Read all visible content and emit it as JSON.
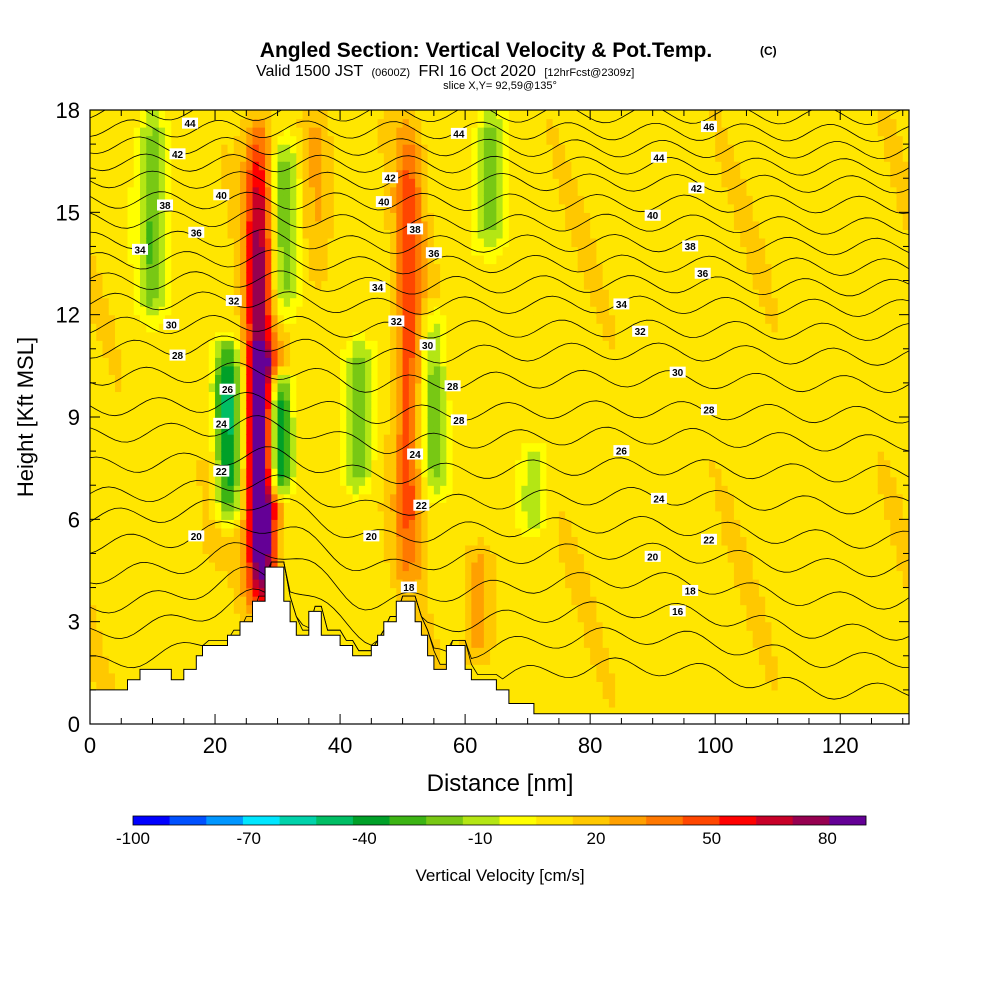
{
  "chart_data": {
    "type": "heatmap",
    "title": "Angled Section: Vertical Velocity & Pot.Temp.",
    "title_tag": "(C)",
    "subtitle_main": "Valid 1500 JST",
    "subtitle_z": "(0600Z)",
    "subtitle_date": "FRI 16 Oct 2020",
    "subtitle_fcst": "[12hrFcst@2309z]",
    "slice_label": "slice X,Y= 92,59@135°",
    "xlabel": "Distance [nm]",
    "ylabel": "Height [Kft MSL]",
    "xlim": [
      0,
      131
    ],
    "ylim": [
      0,
      18
    ],
    "x_ticks": [
      "0",
      "20",
      "40",
      "60",
      "80",
      "100",
      "120"
    ],
    "x_tick_values": [
      0,
      20,
      40,
      60,
      80,
      100,
      120
    ],
    "y_ticks": [
      "0",
      "3",
      "6",
      "9",
      "12",
      "15",
      "18"
    ],
    "y_tick_values": [
      0,
      3,
      6,
      9,
      12,
      15,
      18
    ],
    "colorbar": {
      "label": "Vertical Velocity [cm/s]",
      "tick_labels": [
        "-100",
        "-70",
        "-40",
        "-10",
        "20",
        "50",
        "80"
      ],
      "tick_values": [
        -100,
        -70,
        -40,
        -10,
        20,
        50,
        80
      ],
      "range": [
        -100,
        90
      ],
      "colors": [
        "#0000ff",
        "#0050ff",
        "#0096ff",
        "#00e6ff",
        "#00d2aa",
        "#00be64",
        "#00a028",
        "#3cb414",
        "#78c814",
        "#b4e614",
        "#ffff00",
        "#ffe600",
        "#ffc800",
        "#ffa000",
        "#ff7800",
        "#ff4600",
        "#ff0000",
        "#c80028",
        "#960050",
        "#640096"
      ]
    },
    "background_value": 10,
    "updraft_cores": [
      {
        "x": 27,
        "z0": 3.5,
        "z1": 18,
        "w": 75
      },
      {
        "x": 28,
        "z0": 3.5,
        "z1": 11,
        "w": 60
      },
      {
        "x": 51,
        "z0": 4,
        "z1": 18,
        "w": 50
      },
      {
        "x": 36,
        "z0": 13,
        "z1": 18,
        "w": 25
      },
      {
        "x": 62,
        "z0": 2,
        "z1": 5,
        "w": 30
      },
      {
        "x": 20,
        "z0": 5,
        "z1": 8,
        "w": 20
      }
    ],
    "downdraft_cores": [
      {
        "x": 22,
        "z0": 6,
        "z1": 11,
        "w": -45
      },
      {
        "x": 30,
        "z0": 7,
        "z1": 10,
        "w": -60
      },
      {
        "x": 10,
        "z0": 12,
        "z1": 18,
        "w": -25
      },
      {
        "x": 43,
        "z0": 7,
        "z1": 11,
        "w": -25
      },
      {
        "x": 55,
        "z0": 7,
        "z1": 12,
        "w": -20
      },
      {
        "x": 64,
        "z0": 14,
        "z1": 18,
        "w": -20
      },
      {
        "x": 71,
        "z0": 6,
        "z1": 8,
        "w": -15
      },
      {
        "x": 31,
        "z0": 12,
        "z1": 17,
        "w": -20
      }
    ],
    "terrain": [
      [
        0,
        1.0
      ],
      [
        6,
        1.0
      ],
      [
        6,
        1.3
      ],
      [
        8,
        1.3
      ],
      [
        8,
        1.6
      ],
      [
        13,
        1.6
      ],
      [
        13,
        1.3
      ],
      [
        15,
        1.3
      ],
      [
        15,
        1.6
      ],
      [
        17,
        1.6
      ],
      [
        17,
        2.0
      ],
      [
        18,
        2.0
      ],
      [
        18,
        2.3
      ],
      [
        22,
        2.3
      ],
      [
        22,
        2.6
      ],
      [
        24,
        2.6
      ],
      [
        24,
        3.0
      ],
      [
        26,
        3.0
      ],
      [
        26,
        3.6
      ],
      [
        28,
        3.6
      ],
      [
        28,
        4.6
      ],
      [
        31,
        4.6
      ],
      [
        31,
        3.6
      ],
      [
        32,
        3.6
      ],
      [
        32,
        3.0
      ],
      [
        33,
        3.0
      ],
      [
        33,
        2.6
      ],
      [
        35,
        2.6
      ],
      [
        35,
        3.3
      ],
      [
        37,
        3.3
      ],
      [
        37,
        2.6
      ],
      [
        40,
        2.6
      ],
      [
        40,
        2.3
      ],
      [
        42,
        2.3
      ],
      [
        42,
        2.0
      ],
      [
        45,
        2.0
      ],
      [
        45,
        2.3
      ],
      [
        46,
        2.3
      ],
      [
        46,
        2.6
      ],
      [
        47,
        2.6
      ],
      [
        47,
        3.0
      ],
      [
        49,
        3.0
      ],
      [
        49,
        3.6
      ],
      [
        52,
        3.6
      ],
      [
        52,
        3.0
      ],
      [
        53,
        3.0
      ],
      [
        53,
        2.6
      ],
      [
        54,
        2.6
      ],
      [
        54,
        2.0
      ],
      [
        55,
        2.0
      ],
      [
        55,
        1.6
      ],
      [
        57,
        1.6
      ],
      [
        57,
        2.3
      ],
      [
        60,
        2.3
      ],
      [
        60,
        1.6
      ],
      [
        61,
        1.6
      ],
      [
        61,
        1.3
      ],
      [
        65,
        1.3
      ],
      [
        65,
        1.0
      ],
      [
        67,
        1.0
      ],
      [
        67,
        0.6
      ],
      [
        71,
        0.6
      ],
      [
        71,
        0.3
      ],
      [
        131,
        0.3
      ]
    ],
    "isentropes": [
      {
        "label": "16",
        "base": 1.5,
        "sag": 1.0
      },
      {
        "label": "",
        "base": 2.4,
        "sag": 1.0
      },
      {
        "label": "18",
        "base": 3.2,
        "sag": 0.9
      },
      {
        "label": "",
        "base": 4.1,
        "sag": 0.8
      },
      {
        "label": "20",
        "base": 5.0,
        "sag": 0.6
      },
      {
        "label": "22",
        "base": 5.8,
        "sag": 0.5
      },
      {
        "label": "24",
        "base": 6.6,
        "sag": 0.4
      },
      {
        "label": "26",
        "base": 7.5,
        "sag": 0.3
      },
      {
        "label": "",
        "base": 8.4,
        "sag": 0.3
      },
      {
        "label": "28",
        "base": 9.2,
        "sag": 0.2
      },
      {
        "label": "",
        "base": 10.1,
        "sag": 0.2
      },
      {
        "label": "30",
        "base": 10.9,
        "sag": 0.2
      },
      {
        "label": "",
        "base": 11.6,
        "sag": 0.1
      },
      {
        "label": "32",
        "base": 12.3,
        "sag": 0.1
      },
      {
        "label": "",
        "base": 12.9,
        "sag": 0.1
      },
      {
        "label": "34",
        "base": 13.5,
        "sag": 0.1
      },
      {
        "label": "36",
        "base": 14.1,
        "sag": 0.1
      },
      {
        "label": "",
        "base": 14.7,
        "sag": 0.1
      },
      {
        "label": "38",
        "base": 15.3,
        "sag": 0.0
      },
      {
        "label": "40",
        "base": 15.9,
        "sag": 0.0
      },
      {
        "label": "",
        "base": 16.4,
        "sag": 0.0
      },
      {
        "label": "42",
        "base": 16.9,
        "sag": 0.0
      },
      {
        "label": "44",
        "base": 17.4,
        "sag": 0.0
      },
      {
        "label": "46",
        "base": 17.9,
        "sag": 0.0
      }
    ],
    "contour_labels": [
      {
        "text": "44",
        "x": 16,
        "z": 17.6
      },
      {
        "text": "42",
        "x": 14,
        "z": 16.7
      },
      {
        "text": "40",
        "x": 21,
        "z": 15.5
      },
      {
        "text": "38",
        "x": 12,
        "z": 15.2
      },
      {
        "text": "36",
        "x": 17,
        "z": 14.4
      },
      {
        "text": "34",
        "x": 8,
        "z": 13.9
      },
      {
        "text": "32",
        "x": 23,
        "z": 12.4
      },
      {
        "text": "30",
        "x": 13,
        "z": 11.7
      },
      {
        "text": "28",
        "x": 14,
        "z": 10.8
      },
      {
        "text": "26",
        "x": 22,
        "z": 9.8
      },
      {
        "text": "24",
        "x": 21,
        "z": 8.8
      },
      {
        "text": "22",
        "x": 21,
        "z": 7.4
      },
      {
        "text": "20",
        "x": 17,
        "z": 5.5
      },
      {
        "text": "44",
        "x": 59,
        "z": 17.3
      },
      {
        "text": "42",
        "x": 48,
        "z": 16.0
      },
      {
        "text": "40",
        "x": 47,
        "z": 15.3
      },
      {
        "text": "38",
        "x": 52,
        "z": 14.5
      },
      {
        "text": "36",
        "x": 55,
        "z": 13.8
      },
      {
        "text": "34",
        "x": 46,
        "z": 12.8
      },
      {
        "text": "32",
        "x": 49,
        "z": 11.8
      },
      {
        "text": "30",
        "x": 54,
        "z": 11.1
      },
      {
        "text": "28",
        "x": 58,
        "z": 9.9
      },
      {
        "text": "28",
        "x": 59,
        "z": 8.9
      },
      {
        "text": "24",
        "x": 52,
        "z": 7.9
      },
      {
        "text": "22",
        "x": 53,
        "z": 6.4
      },
      {
        "text": "20",
        "x": 45,
        "z": 5.5
      },
      {
        "text": "18",
        "x": 51,
        "z": 4.0
      },
      {
        "text": "46",
        "x": 99,
        "z": 17.5
      },
      {
        "text": "44",
        "x": 91,
        "z": 16.6
      },
      {
        "text": "42",
        "x": 97,
        "z": 15.7
      },
      {
        "text": "40",
        "x": 90,
        "z": 14.9
      },
      {
        "text": "38",
        "x": 96,
        "z": 14.0
      },
      {
        "text": "36",
        "x": 98,
        "z": 13.2
      },
      {
        "text": "34",
        "x": 85,
        "z": 12.3
      },
      {
        "text": "32",
        "x": 88,
        "z": 11.5
      },
      {
        "text": "30",
        "x": 94,
        "z": 10.3
      },
      {
        "text": "28",
        "x": 99,
        "z": 9.2
      },
      {
        "text": "26",
        "x": 85,
        "z": 8.0
      },
      {
        "text": "24",
        "x": 91,
        "z": 6.6
      },
      {
        "text": "22",
        "x": 99,
        "z": 5.4
      },
      {
        "text": "20",
        "x": 90,
        "z": 4.9
      },
      {
        "text": "18",
        "x": 96,
        "z": 3.9
      },
      {
        "text": "16",
        "x": 94,
        "z": 3.3
      }
    ]
  }
}
